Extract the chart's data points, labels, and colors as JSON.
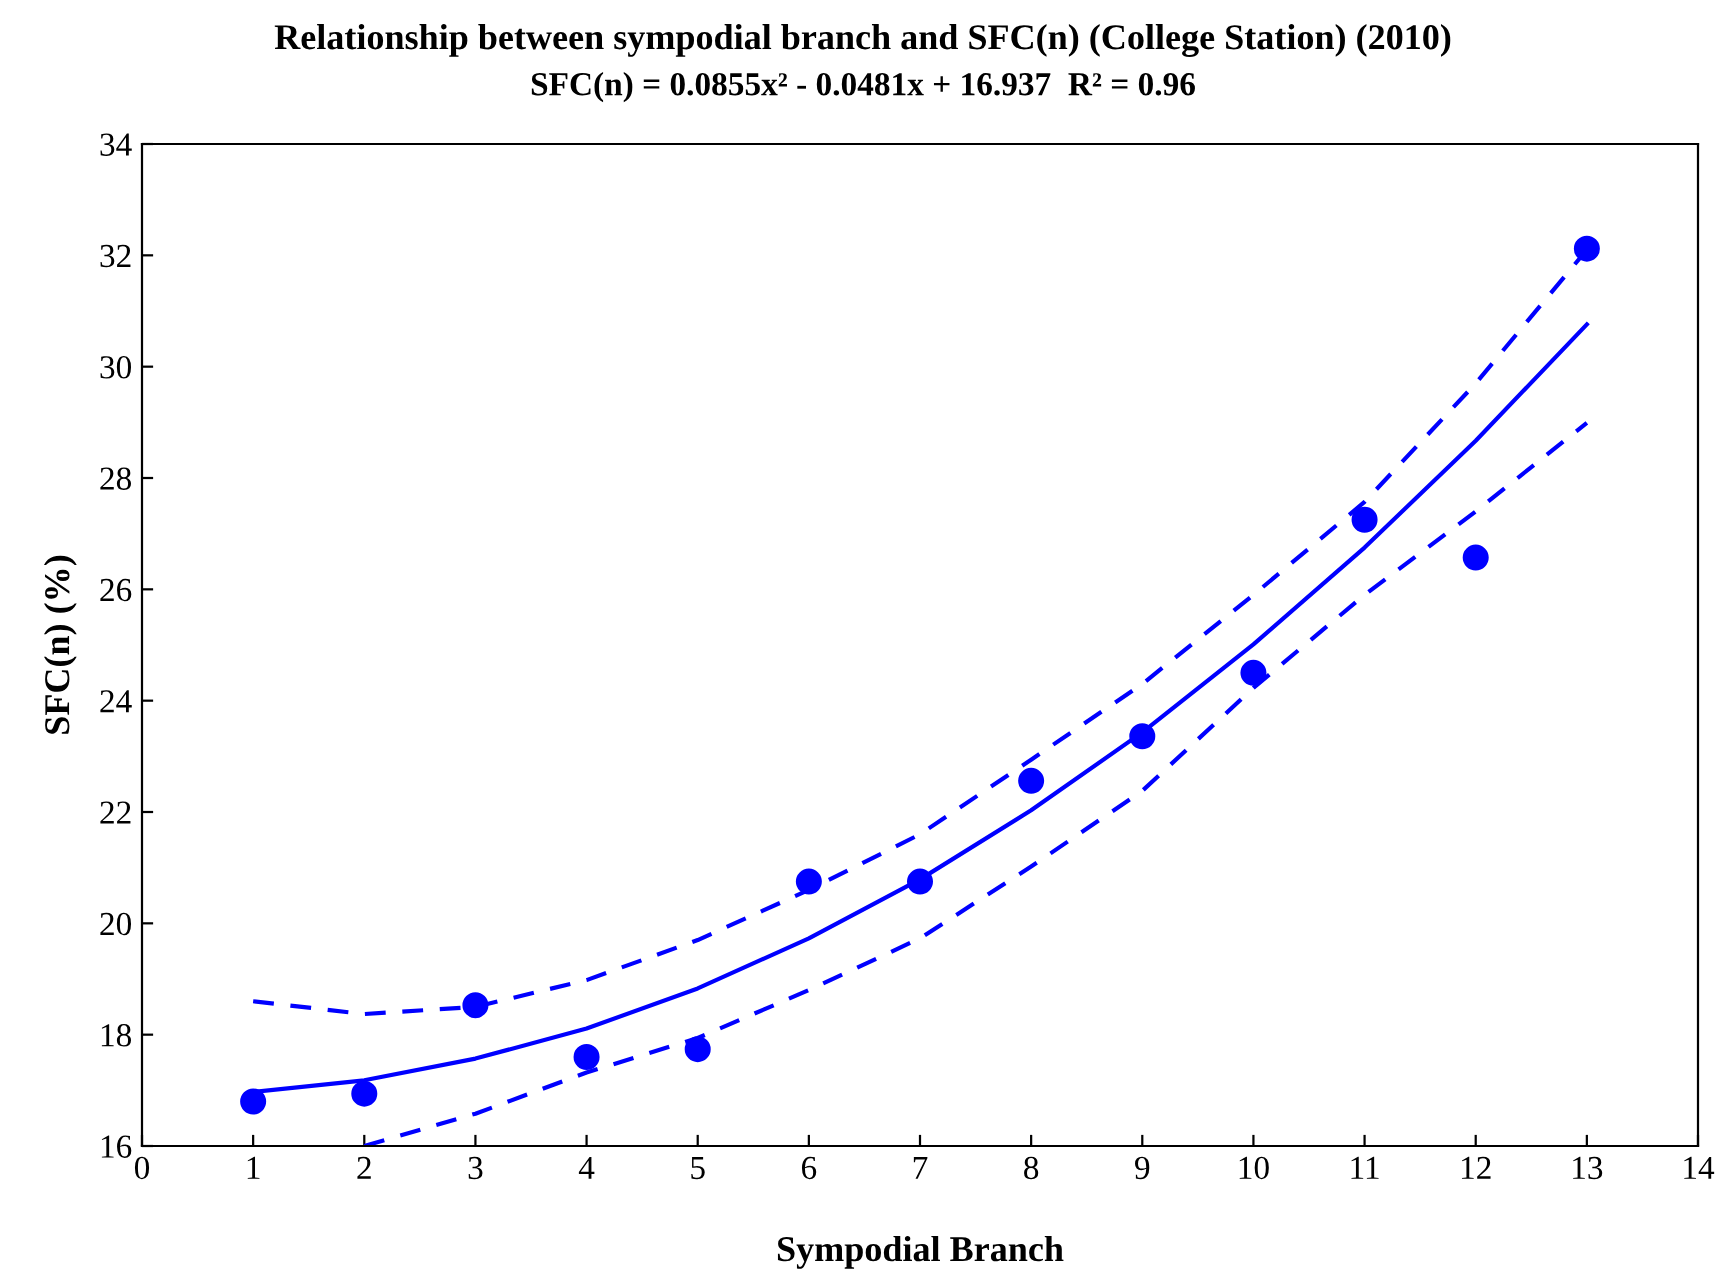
{
  "chart_data": {
    "type": "scatter",
    "title": "Relationship between sympodial branch and SFC(n) (College Station) (2010)",
    "subtitle": "SFC(n) = 0.0855x² - 0.0481x + 16.937  R² = 0.96",
    "xlabel": "Sympodial Branch",
    "ylabel": "SFC(n) (%)",
    "xlim": [
      0,
      14
    ],
    "ylim": [
      16,
      34
    ],
    "xticks": [
      0,
      1,
      2,
      3,
      4,
      5,
      6,
      7,
      8,
      9,
      10,
      11,
      12,
      13,
      14
    ],
    "yticks": [
      16,
      18,
      20,
      22,
      24,
      26,
      28,
      30,
      32,
      34
    ],
    "grid": false,
    "legend": false,
    "series": [
      {
        "color": "#0000ff",
        "marker": "circle",
        "x": [
          1,
          2,
          3,
          4,
          5,
          6,
          7,
          8,
          9,
          10,
          11,
          12,
          13
        ],
        "values": [
          16.8,
          16.94,
          18.53,
          17.6,
          17.74,
          20.75,
          20.75,
          22.56,
          23.36,
          24.5,
          27.25,
          26.57,
          32.12
        ]
      },
      {
        "type": "line",
        "color": "#0000ff",
        "line_style": "solid",
        "x": [
          1,
          2,
          3,
          4,
          5,
          6,
          7,
          8,
          9,
          10,
          11,
          12,
          13
        ],
        "values": [
          16.97,
          17.18,
          17.57,
          18.11,
          18.83,
          19.73,
          20.79,
          22.03,
          23.43,
          25.01,
          26.75,
          28.67,
          30.76
        ]
      },
      {
        "type": "line",
        "color": "#0000ff",
        "line_style": "dashed",
        "x": [
          1,
          2,
          3,
          4,
          5,
          6,
          7,
          8,
          9,
          10,
          11,
          12,
          13
        ],
        "values": [
          18.6,
          18.37,
          18.5,
          18.98,
          19.7,
          20.6,
          21.6,
          22.94,
          24.3,
          25.9,
          27.57,
          29.7,
          32.1
        ]
      },
      {
        "type": "line",
        "color": "#0000ff",
        "line_style": "dashed",
        "x": [
          2,
          3,
          4,
          5,
          6,
          7,
          8,
          9,
          10,
          11,
          12,
          13
        ],
        "values": [
          16.0,
          16.58,
          17.32,
          17.94,
          18.8,
          19.73,
          21.02,
          22.38,
          24.23,
          25.9,
          27.4,
          28.99
        ]
      }
    ]
  }
}
